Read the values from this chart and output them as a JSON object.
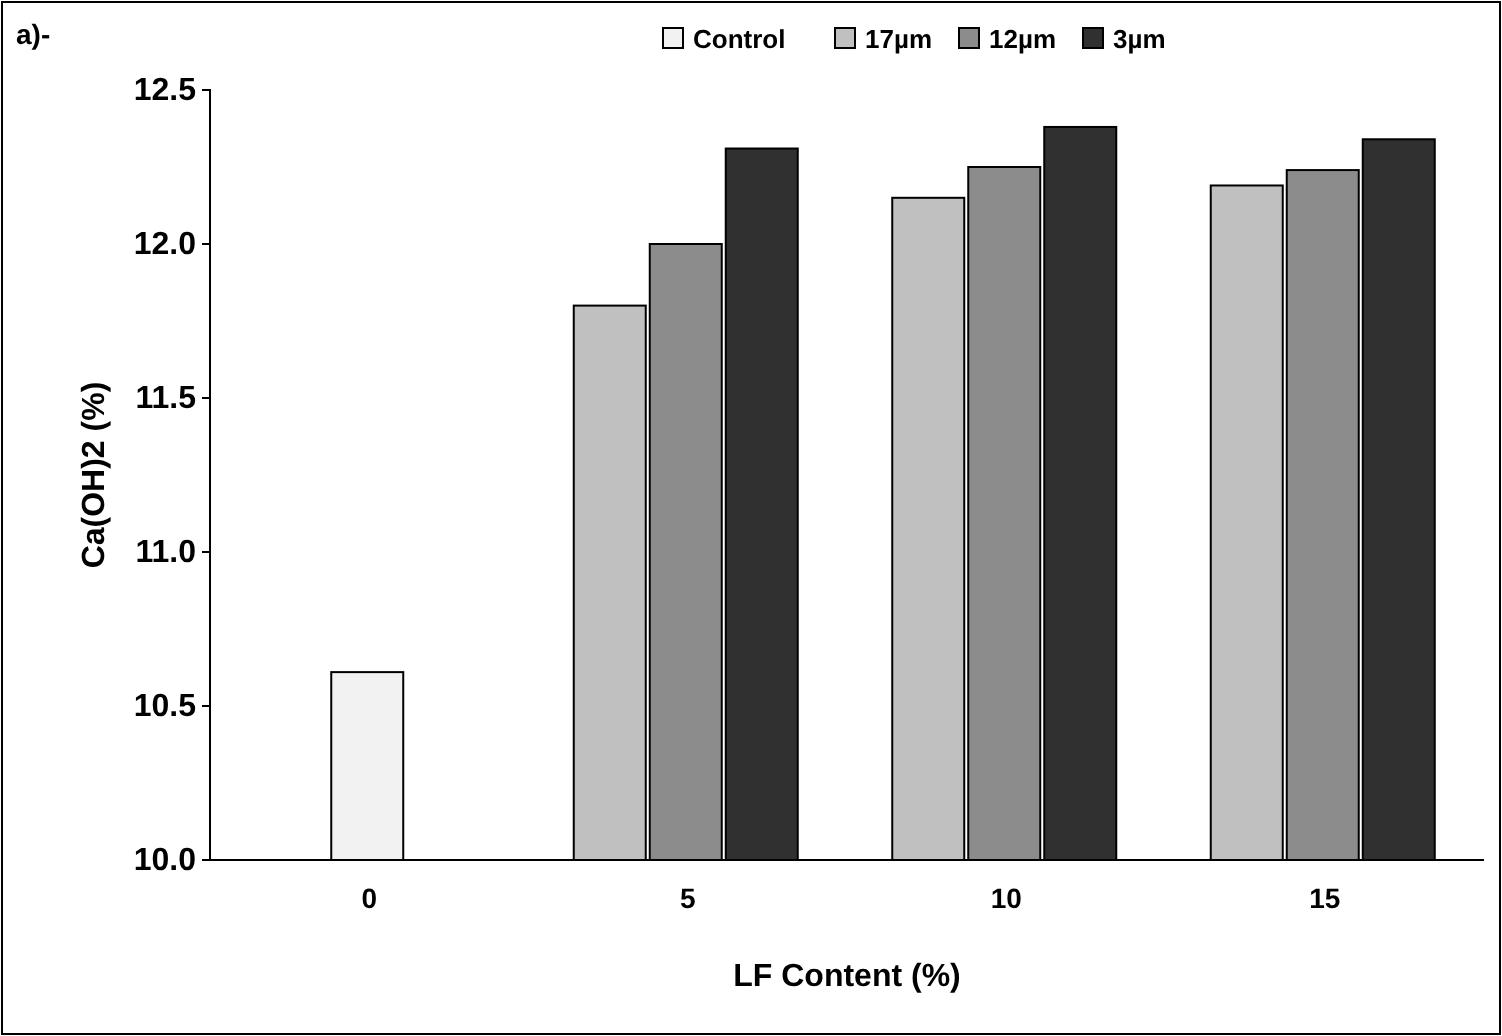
{
  "chart_data": {
    "type": "bar",
    "xlabel": "LF Content (%)",
    "ylabel": "Ca(OH)2 (%)",
    "annotations": [
      "a)-"
    ],
    "categories": [
      "0",
      "5",
      "10",
      "15"
    ],
    "series": [
      {
        "name": "Control",
        "color": "#f2f2f2",
        "values": [
          10.61,
          null,
          null,
          null
        ]
      },
      {
        "name": "17µm",
        "color": "#c0c0c0",
        "values": [
          null,
          11.8,
          12.15,
          12.19
        ]
      },
      {
        "name": "12µm",
        "color": "#8c8c8c",
        "values": [
          null,
          12.0,
          12.25,
          12.24
        ]
      },
      {
        "name": "3µm",
        "color": "#303030",
        "values": [
          null,
          12.31,
          12.38,
          12.34
        ]
      }
    ],
    "ylim": [
      10.0,
      12.5
    ],
    "yticks": [
      {
        "value": 10.0,
        "label": "10.0"
      },
      {
        "value": 10.5,
        "label": "10.5"
      },
      {
        "value": 11.0,
        "label": "11.0"
      },
      {
        "value": 11.5,
        "label": "11.5"
      },
      {
        "value": 12.0,
        "label": "12.0"
      },
      {
        "value": 12.5,
        "label": "12.5"
      }
    ],
    "legend": "top",
    "grid": false
  }
}
